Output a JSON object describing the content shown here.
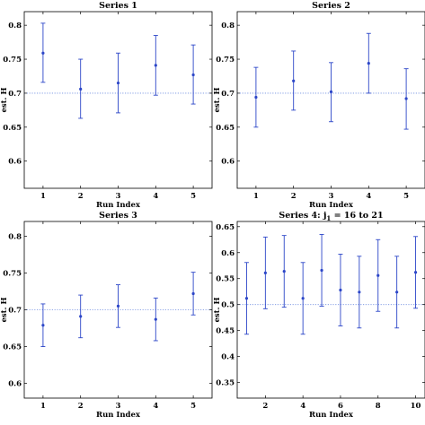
{
  "chart_data": [
    {
      "type": "scatter",
      "title": "Series 1",
      "title_sub": "",
      "title_rest": "",
      "xlabel": "Run Index",
      "ylabel": "est. H",
      "xlim": [
        0.5,
        5.5
      ],
      "ylim": [
        0.56,
        0.82
      ],
      "xticks": [
        1,
        2,
        3,
        4,
        5
      ],
      "yticks": [
        0.6,
        0.65,
        0.7,
        0.75,
        0.8
      ],
      "reference_line": 0.7,
      "series": [
        {
          "x": [
            1,
            2,
            3,
            4,
            5
          ],
          "y": [
            0.759,
            0.706,
            0.715,
            0.741,
            0.727
          ],
          "err_low": [
            0.716,
            0.663,
            0.671,
            0.697,
            0.684
          ],
          "err_high": [
            0.803,
            0.75,
            0.759,
            0.785,
            0.771
          ]
        }
      ]
    },
    {
      "type": "scatter",
      "title": "Series 2",
      "title_sub": "",
      "title_rest": "",
      "xlabel": "Run Index",
      "ylabel": "est. H",
      "xlim": [
        0.5,
        5.5
      ],
      "ylim": [
        0.56,
        0.82
      ],
      "xticks": [
        1,
        2,
        3,
        4,
        5
      ],
      "yticks": [
        0.6,
        0.65,
        0.7,
        0.75,
        0.8
      ],
      "reference_line": 0.7,
      "series": [
        {
          "x": [
            1,
            2,
            3,
            4,
            5
          ],
          "y": [
            0.694,
            0.718,
            0.702,
            0.744,
            0.692
          ],
          "err_low": [
            0.65,
            0.675,
            0.658,
            0.7,
            0.647
          ],
          "err_high": [
            0.738,
            0.762,
            0.745,
            0.788,
            0.736
          ]
        }
      ]
    },
    {
      "type": "scatter",
      "title": "Series 3",
      "title_sub": "",
      "title_rest": "",
      "xlabel": "Run Index",
      "ylabel": "est. H",
      "xlim": [
        0.5,
        5.5
      ],
      "ylim": [
        0.58,
        0.82
      ],
      "xticks": [
        1,
        2,
        3,
        4,
        5
      ],
      "yticks": [
        0.6,
        0.65,
        0.7,
        0.75,
        0.8
      ],
      "reference_line": 0.7,
      "series": [
        {
          "x": [
            1,
            2,
            3,
            4,
            5
          ],
          "y": [
            0.679,
            0.691,
            0.705,
            0.687,
            0.722
          ],
          "err_low": [
            0.65,
            0.662,
            0.676,
            0.658,
            0.693
          ],
          "err_high": [
            0.708,
            0.72,
            0.734,
            0.716,
            0.751
          ]
        }
      ]
    },
    {
      "type": "scatter",
      "title": "Series 4: j",
      "title_sub": "1",
      "title_rest": " = 16 to 21",
      "xlabel": "Run Index",
      "ylabel": "est. H",
      "xlim": [
        0.5,
        10.5
      ],
      "ylim": [
        0.32,
        0.66
      ],
      "xticks": [
        2,
        4,
        6,
        8,
        10
      ],
      "yticks": [
        0.35,
        0.4,
        0.45,
        0.5,
        0.55,
        0.6,
        0.65
      ],
      "reference_line": 0.5,
      "series": [
        {
          "x": [
            1,
            2,
            3,
            4,
            5,
            6,
            7,
            8,
            9,
            10
          ],
          "y": [
            0.512,
            0.561,
            0.564,
            0.512,
            0.566,
            0.528,
            0.524,
            0.556,
            0.524,
            0.562
          ],
          "err_low": [
            0.443,
            0.492,
            0.495,
            0.443,
            0.497,
            0.459,
            0.455,
            0.487,
            0.455,
            0.493
          ],
          "err_high": [
            0.581,
            0.63,
            0.633,
            0.581,
            0.635,
            0.597,
            0.593,
            0.625,
            0.593,
            0.631
          ]
        }
      ]
    }
  ]
}
